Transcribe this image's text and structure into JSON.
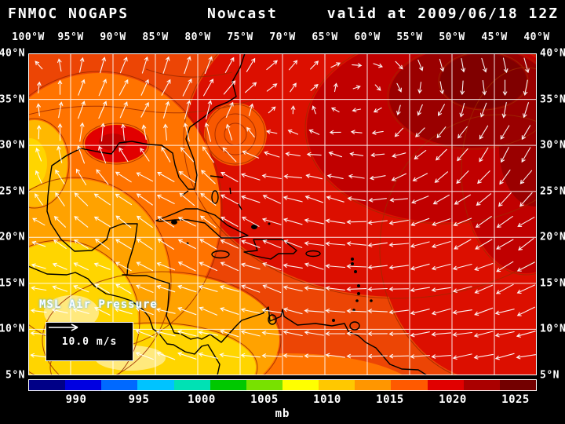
{
  "header": {
    "model": "FNMOC NOGAPS",
    "product": "Nowcast",
    "valid": "valid at 2009/06/18 12Z"
  },
  "axes": {
    "lon_labels": [
      "100°W",
      "95°W",
      "90°W",
      "85°W",
      "80°W",
      "75°W",
      "70°W",
      "65°W",
      "60°W",
      "55°W",
      "50°W",
      "45°W",
      "40°W"
    ],
    "lat_labels": [
      "40°N",
      "35°N",
      "30°N",
      "25°N",
      "20°N",
      "15°N",
      "10°N",
      "5°N"
    ]
  },
  "map_overlay": {
    "field_label": "MSL Air Pressure",
    "wind_scale": "10.0 m/s"
  },
  "colorbar": {
    "unit": "mb",
    "tick_labels": [
      "990",
      "995",
      "1000",
      "1005",
      "1010",
      "1015",
      "1020",
      "1025"
    ],
    "colors": [
      "#000087",
      "#0000e1",
      "#0069ff",
      "#00c3ff",
      "#00e1b4",
      "#00c800",
      "#78e100",
      "#ffff00",
      "#ffc800",
      "#ff9600",
      "#ff5a00",
      "#e10000",
      "#aa0000",
      "#730000"
    ]
  },
  "field_info": {
    "variable": "MSL Air Pressure",
    "units": "mb",
    "plot_type": "filled contours with wind vectors",
    "pressure_ticks_mb": [
      990,
      995,
      1000,
      1005,
      1010,
      1015,
      1020,
      1025
    ],
    "lon_range": [
      "100°W",
      "40°W"
    ],
    "lat_range": [
      "5°N",
      "40°N"
    ]
  }
}
